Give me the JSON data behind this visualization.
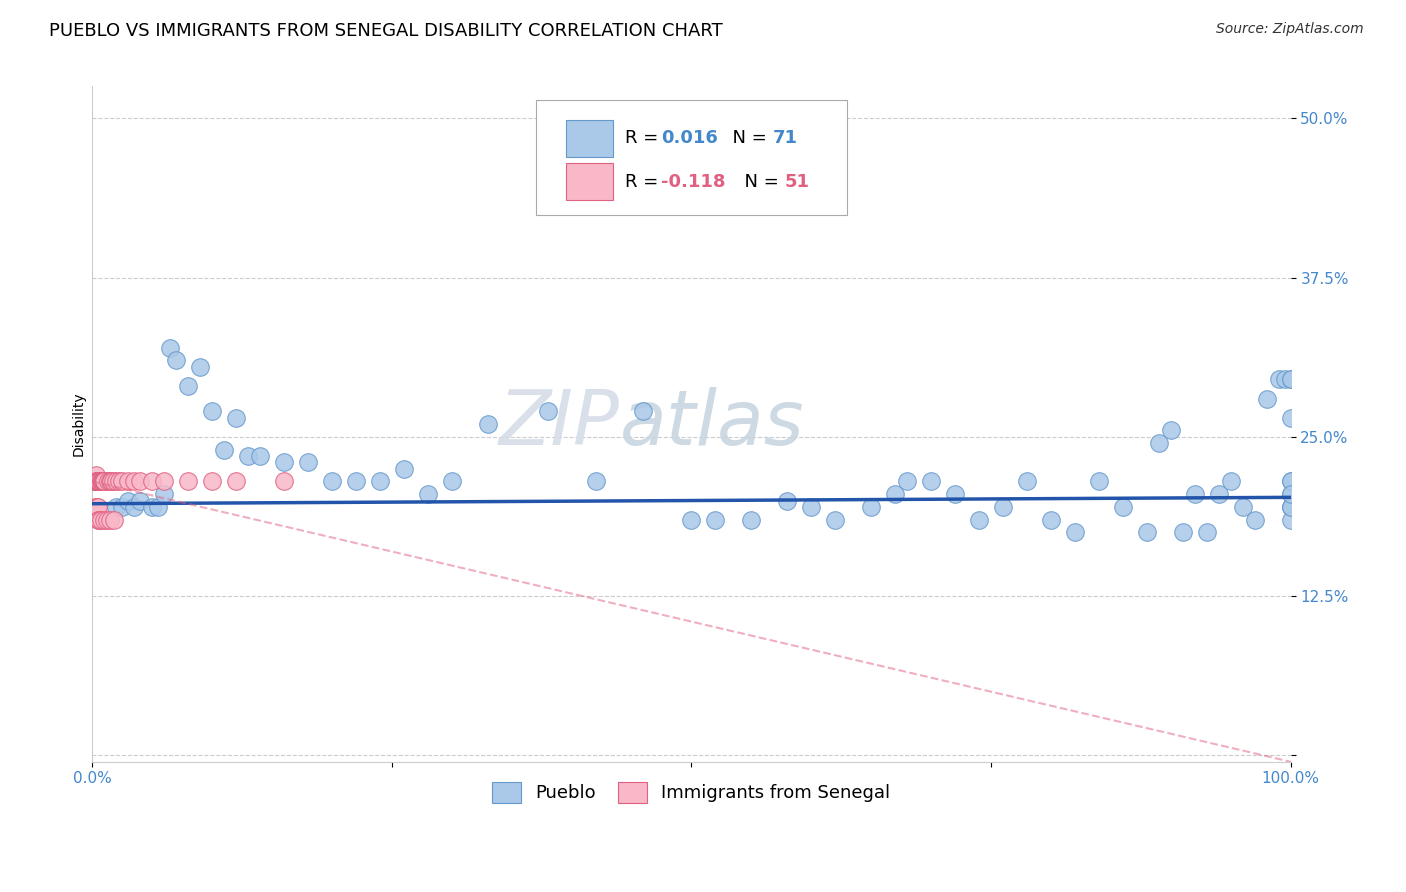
{
  "title": "PUEBLO VS IMMIGRANTS FROM SENEGAL DISABILITY CORRELATION CHART",
  "source": "Source: ZipAtlas.com",
  "ylabel": "Disability",
  "watermark_line1": "ZIP",
  "watermark_line2": "atlas",
  "legend_r_blue": "0.016",
  "legend_n_blue": "71",
  "legend_r_pink": "-0.118",
  "legend_n_pink": "51",
  "xlim": [
    0.0,
    1.0
  ],
  "ylim": [
    -0.005,
    0.525
  ],
  "yticks": [
    0.0,
    0.125,
    0.25,
    0.375,
    0.5
  ],
  "ytick_labels": [
    "",
    "12.5%",
    "25.0%",
    "37.5%",
    "50.0%"
  ],
  "xticks": [
    0.0,
    0.25,
    0.5,
    0.75,
    1.0
  ],
  "xtick_labels": [
    "0.0%",
    "",
    "",
    "",
    "100.0%"
  ],
  "blue_scatter_x": [
    0.02,
    0.025,
    0.03,
    0.035,
    0.04,
    0.05,
    0.055,
    0.06,
    0.065,
    0.07,
    0.08,
    0.09,
    0.1,
    0.11,
    0.12,
    0.13,
    0.14,
    0.16,
    0.18,
    0.2,
    0.22,
    0.24,
    0.26,
    0.28,
    0.3,
    0.33,
    0.38,
    0.42,
    0.46,
    0.5,
    0.52,
    0.55,
    0.58,
    0.6,
    0.62,
    0.65,
    0.67,
    0.68,
    0.7,
    0.72,
    0.74,
    0.76,
    0.78,
    0.8,
    0.82,
    0.84,
    0.86,
    0.88,
    0.89,
    0.9,
    0.91,
    0.92,
    0.93,
    0.94,
    0.95,
    0.96,
    0.97,
    0.98,
    0.99,
    0.995,
    1.0,
    1.0,
    1.0,
    1.0,
    1.0,
    1.0,
    1.0,
    1.0,
    1.0,
    1.0,
    1.0
  ],
  "blue_scatter_y": [
    0.195,
    0.195,
    0.2,
    0.195,
    0.2,
    0.195,
    0.195,
    0.205,
    0.32,
    0.31,
    0.29,
    0.305,
    0.27,
    0.24,
    0.265,
    0.235,
    0.235,
    0.23,
    0.23,
    0.215,
    0.215,
    0.215,
    0.225,
    0.205,
    0.215,
    0.26,
    0.27,
    0.215,
    0.27,
    0.185,
    0.185,
    0.185,
    0.2,
    0.195,
    0.185,
    0.195,
    0.205,
    0.215,
    0.215,
    0.205,
    0.185,
    0.195,
    0.215,
    0.185,
    0.175,
    0.215,
    0.195,
    0.175,
    0.245,
    0.255,
    0.175,
    0.205,
    0.175,
    0.205,
    0.215,
    0.195,
    0.185,
    0.28,
    0.295,
    0.295,
    0.205,
    0.295,
    0.195,
    0.215,
    0.195,
    0.185,
    0.215,
    0.195,
    0.205,
    0.265,
    0.295
  ],
  "pink_scatter_x": [
    0.001,
    0.002,
    0.002,
    0.003,
    0.003,
    0.003,
    0.003,
    0.003,
    0.004,
    0.004,
    0.004,
    0.004,
    0.005,
    0.005,
    0.005,
    0.005,
    0.005,
    0.005,
    0.005,
    0.006,
    0.006,
    0.006,
    0.007,
    0.007,
    0.007,
    0.008,
    0.008,
    0.009,
    0.01,
    0.01,
    0.01,
    0.01,
    0.012,
    0.013,
    0.015,
    0.015,
    0.016,
    0.017,
    0.018,
    0.02,
    0.022,
    0.025,
    0.03,
    0.035,
    0.04,
    0.05,
    0.06,
    0.08,
    0.1,
    0.12,
    0.16
  ],
  "pink_scatter_y": [
    0.215,
    0.195,
    0.215,
    0.215,
    0.215,
    0.215,
    0.215,
    0.22,
    0.195,
    0.215,
    0.215,
    0.215,
    0.195,
    0.215,
    0.215,
    0.215,
    0.215,
    0.185,
    0.215,
    0.215,
    0.215,
    0.185,
    0.215,
    0.215,
    0.185,
    0.215,
    0.215,
    0.215,
    0.215,
    0.185,
    0.215,
    0.215,
    0.185,
    0.215,
    0.215,
    0.185,
    0.215,
    0.215,
    0.185,
    0.215,
    0.215,
    0.215,
    0.215,
    0.215,
    0.215,
    0.215,
    0.215,
    0.215,
    0.215,
    0.215,
    0.215
  ],
  "blue_color": "#aac8e8",
  "blue_edge_color": "#6699cc",
  "blue_line_color": "#2255aa",
  "pink_color": "#f8b8c8",
  "pink_edge_color": "#e06080",
  "pink_line_color": "#e06080",
  "background_color": "#ffffff",
  "grid_color": "#cccccc",
  "tick_color": "#4488cc",
  "title_fontsize": 13,
  "axis_label_fontsize": 10,
  "tick_fontsize": 11,
  "legend_fontsize": 13,
  "source_fontsize": 10,
  "watermark_color": "#d5dde8",
  "watermark_fontsize_zip": 55,
  "watermark_fontsize_atlas": 55
}
